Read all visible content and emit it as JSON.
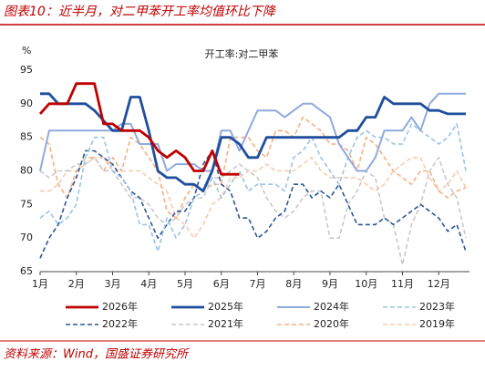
{
  "header": {
    "title": "图表10：近半月，对二甲苯开工率均值环比下降"
  },
  "footer": {
    "source": "资料来源：Wind，国盛证券研究所"
  },
  "chart_data": {
    "type": "line",
    "title": "开工率:对二甲苯",
    "y_label": "%",
    "xlim": [
      1,
      12.85
    ],
    "ylim": [
      65,
      95
    ],
    "yticks": [
      65,
      70,
      75,
      80,
      85,
      90,
      95
    ],
    "xticks": [
      {
        "value": 1,
        "label": "1月"
      },
      {
        "value": 2,
        "label": "2月"
      },
      {
        "value": 3,
        "label": "3月"
      },
      {
        "value": 4,
        "label": "4月"
      },
      {
        "value": 5,
        "label": "5月"
      },
      {
        "value": 6,
        "label": "6月"
      },
      {
        "value": 7,
        "label": "7月"
      },
      {
        "value": 8,
        "label": "8月"
      },
      {
        "value": 9,
        "label": "9月"
      },
      {
        "value": 10,
        "label": "10月"
      },
      {
        "value": 11,
        "label": "11月"
      },
      {
        "value": 12,
        "label": "12月"
      }
    ],
    "x": [
      1,
      1.25,
      1.5,
      1.75,
      2,
      2.25,
      2.5,
      2.75,
      3,
      3.25,
      3.5,
      3.75,
      4,
      4.25,
      4.5,
      4.75,
      5,
      5.25,
      5.5,
      5.75,
      6,
      6.25,
      6.5,
      6.75,
      7,
      7.25,
      7.5,
      7.75,
      8,
      8.25,
      8.5,
      8.75,
      9,
      9.25,
      9.5,
      9.75,
      10,
      10.25,
      10.5,
      10.75,
      11,
      11.25,
      11.5,
      11.75,
      12,
      12.25,
      12.5,
      12.75
    ],
    "series": [
      {
        "name": "2026年",
        "color": "#c00000",
        "style": "bold",
        "values": [
          88.5,
          90,
          90,
          90,
          93,
          93,
          93,
          87,
          87,
          86,
          86,
          86,
          85,
          83,
          82,
          83,
          82,
          80,
          80,
          83,
          79.5,
          79.5,
          79.5,
          null,
          null,
          null,
          null,
          null,
          null,
          null,
          null,
          null,
          null,
          null,
          null,
          null,
          null,
          null,
          null,
          null,
          null,
          null,
          null,
          null,
          null,
          null,
          null,
          null
        ]
      },
      {
        "name": "2025年",
        "color": "#1f4e9c",
        "style": "bold",
        "values": [
          91.5,
          91.5,
          90,
          90,
          90,
          90,
          89,
          87.5,
          86,
          86,
          91,
          91,
          86,
          80,
          79,
          79,
          78,
          78,
          77,
          80,
          85,
          85,
          84,
          82,
          82,
          85,
          85,
          85,
          85,
          85,
          85,
          85,
          85,
          85,
          86,
          86,
          88,
          88,
          91,
          90,
          90,
          90,
          90,
          89,
          89,
          88.5,
          88.5,
          88.5
        ]
      },
      {
        "name": "2024年",
        "color": "#8faadc",
        "style": "solid",
        "values": [
          80,
          86,
          86,
          86,
          86,
          86,
          86,
          86,
          86,
          87,
          87,
          84,
          84,
          84,
          80,
          81,
          81,
          81,
          80,
          80,
          86,
          86,
          83,
          86,
          89,
          89,
          89,
          88,
          89,
          90,
          90,
          89,
          88,
          84,
          82,
          80,
          80,
          82,
          86,
          86,
          86,
          88,
          86,
          90,
          91.5,
          91.5,
          91.5,
          91.5
        ]
      },
      {
        "name": "2023年",
        "color": "#9dc3e6",
        "style": "dashed",
        "values": [
          73,
          74,
          72,
          73,
          75,
          82,
          85,
          85,
          80,
          79,
          77,
          72,
          72,
          68,
          73,
          70,
          72,
          76,
          77,
          79,
          76,
          78,
          80,
          77,
          78,
          78,
          78,
          77,
          82,
          83,
          85,
          82,
          80,
          78,
          82,
          85,
          86,
          85,
          85,
          84,
          84,
          87,
          86,
          85,
          84,
          85,
          87,
          80
        ]
      },
      {
        "name": "2022年",
        "color": "#2f5597",
        "style": "dashed",
        "values": [
          67,
          70,
          72,
          76,
          79,
          83,
          83,
          82,
          81,
          79,
          77,
          76,
          73,
          70,
          72,
          74,
          74,
          76,
          81,
          83,
          78,
          77,
          73,
          73,
          70,
          71,
          73,
          74,
          78,
          78,
          76,
          77,
          76,
          78,
          75,
          72,
          72,
          72,
          73,
          72,
          73,
          74,
          75,
          74,
          73,
          71,
          72,
          68
        ]
      },
      {
        "name": "2021年",
        "color": "#c9c9c9",
        "style": "dashed",
        "values": [
          80,
          79,
          80,
          80,
          81,
          81,
          82,
          80,
          80,
          78,
          76,
          76,
          75,
          73,
          72,
          73,
          75,
          76,
          76,
          79,
          79,
          80,
          81,
          80,
          79,
          76,
          74,
          73,
          74,
          76,
          77,
          77,
          70,
          70,
          75,
          77,
          80,
          79,
          73,
          72,
          66,
          72,
          75,
          80,
          82,
          78,
          76,
          70
        ]
      },
      {
        "name": "2020年",
        "color": "#f4b183",
        "style": "dashed",
        "values": [
          85,
          84,
          78,
          76,
          80,
          82,
          82,
          80,
          82,
          80,
          85,
          84,
          82,
          80,
          74,
          73,
          76,
          78,
          77,
          78,
          78,
          85,
          85,
          85,
          83,
          82,
          86,
          86,
          85,
          88,
          87,
          86,
          84,
          84,
          83,
          80,
          85,
          84,
          82,
          80,
          79,
          78,
          80,
          80,
          77,
          76,
          77,
          77.5
        ]
      },
      {
        "name": "2019年",
        "color": "#f8cbad",
        "style": "dashed",
        "values": [
          77,
          77,
          78,
          80,
          80,
          81,
          82,
          82,
          80,
          80,
          80,
          80,
          79,
          78,
          77,
          73,
          72,
          70,
          72,
          75,
          76,
          79,
          79,
          80,
          80,
          81,
          80,
          80,
          80,
          81,
          82,
          80,
          79,
          79,
          79,
          79,
          78,
          77,
          78,
          80,
          81,
          82,
          82,
          79,
          77,
          78,
          80,
          77.5
        ]
      }
    ]
  }
}
